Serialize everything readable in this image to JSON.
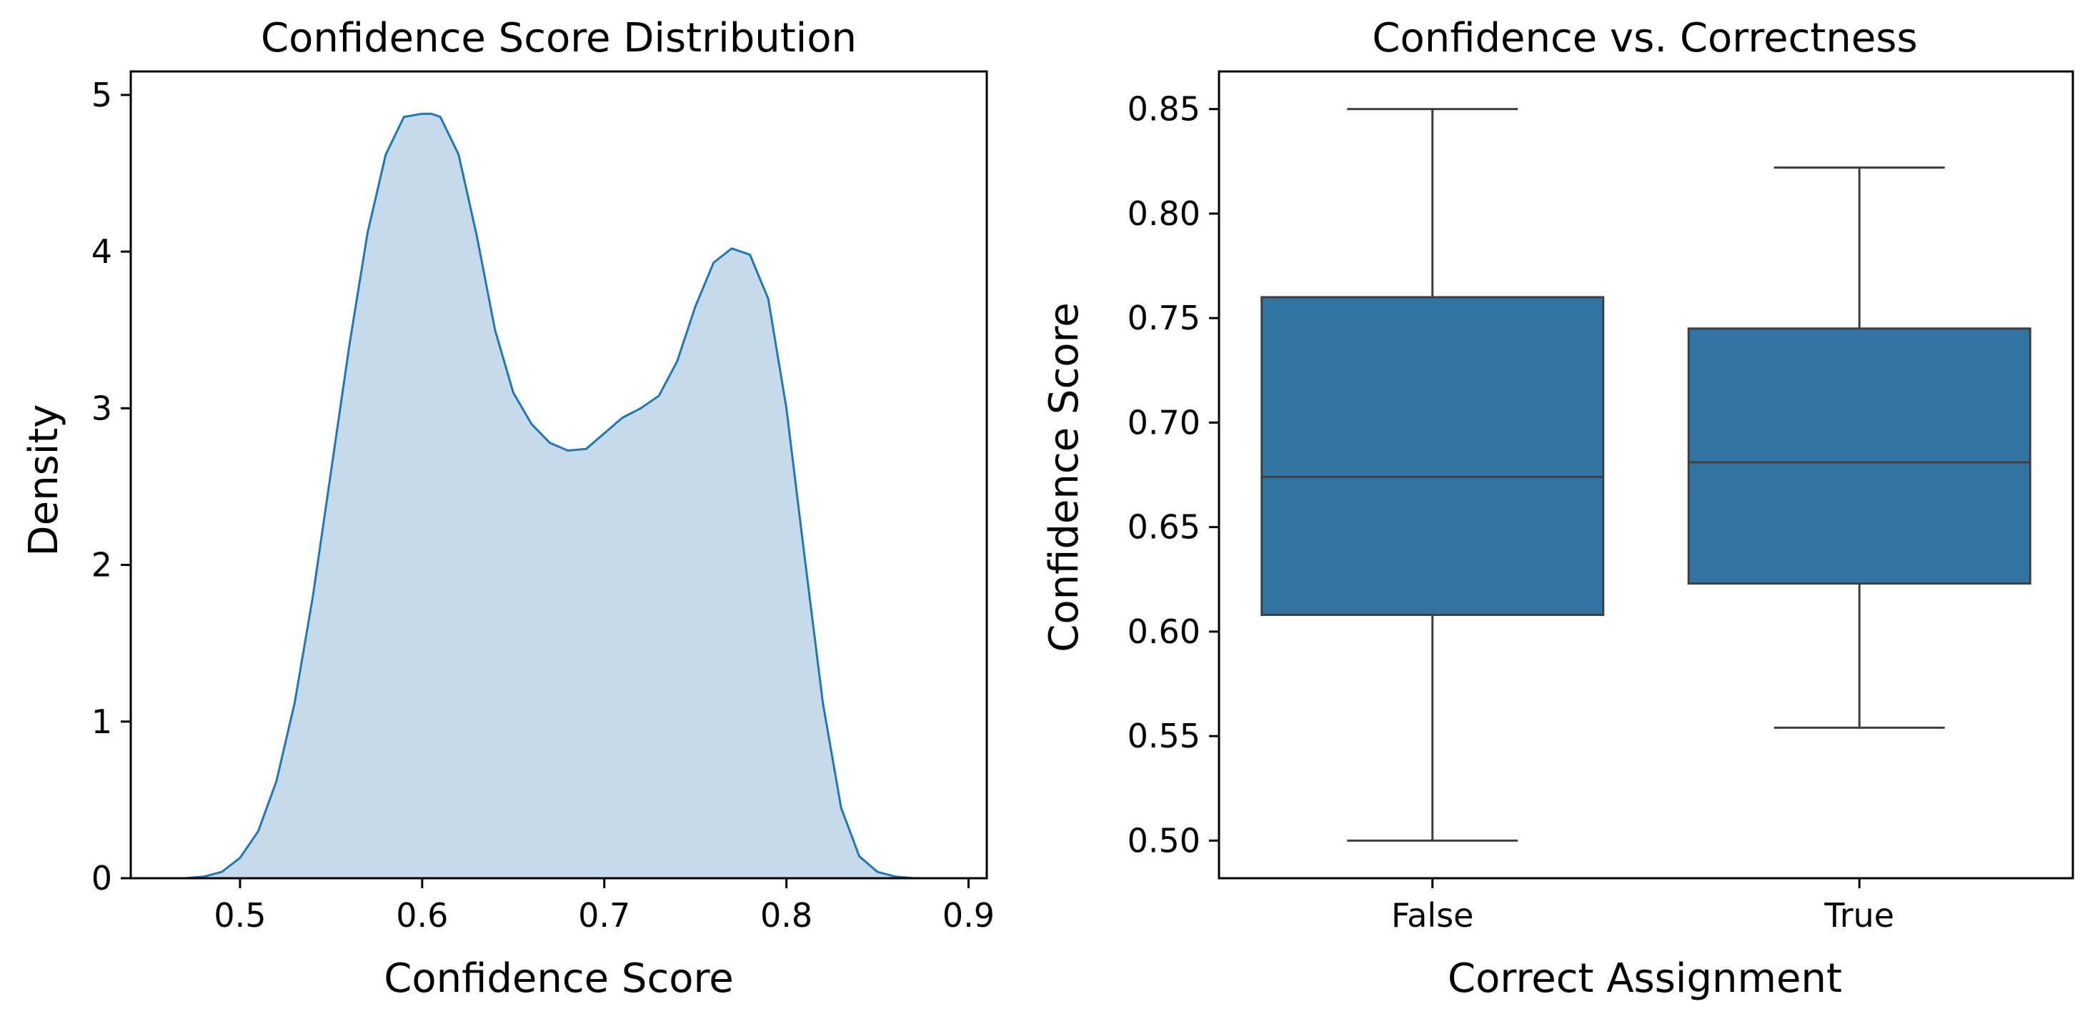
{
  "colors": {
    "kde_line": "#1f77b4",
    "kde_fill": "#c5dbec",
    "box_fill": "#3274a1",
    "box_edge": "#3f3f3f",
    "axes": "#000000",
    "background": "#ffffff"
  },
  "chart_data": [
    {
      "type": "area",
      "title": "Confidence Score Distribution",
      "xlabel": "Confidence Score",
      "ylabel": "Density",
      "xlim": [
        0.44,
        0.91
      ],
      "ylim": [
        0,
        5.15
      ],
      "xticks": [
        0.5,
        0.6,
        0.7,
        0.8,
        0.9
      ],
      "xtick_labels": [
        "0.5",
        "0.6",
        "0.7",
        "0.8",
        "0.9"
      ],
      "yticks": [
        0,
        1,
        2,
        3,
        4,
        5
      ],
      "ytick_labels": [
        "0",
        "1",
        "2",
        "3",
        "4",
        "5"
      ],
      "grid": false,
      "series": [
        {
          "x": [
            0.47,
            0.48,
            0.49,
            0.5,
            0.51,
            0.52,
            0.53,
            0.54,
            0.55,
            0.56,
            0.57,
            0.58,
            0.59,
            0.6,
            0.605,
            0.61,
            0.62,
            0.63,
            0.64,
            0.65,
            0.66,
            0.67,
            0.68,
            0.69,
            0.7,
            0.71,
            0.72,
            0.73,
            0.74,
            0.75,
            0.76,
            0.77,
            0.78,
            0.79,
            0.8,
            0.81,
            0.82,
            0.83,
            0.84,
            0.85,
            0.86,
            0.87,
            0.88
          ],
          "y": [
            0.0,
            0.01,
            0.04,
            0.13,
            0.3,
            0.62,
            1.12,
            1.8,
            2.6,
            3.4,
            4.12,
            4.62,
            4.86,
            4.88,
            4.88,
            4.86,
            4.62,
            4.1,
            3.5,
            3.1,
            2.9,
            2.78,
            2.73,
            2.74,
            2.84,
            2.94,
            3.0,
            3.08,
            3.3,
            3.65,
            3.93,
            4.02,
            3.98,
            3.7,
            3.0,
            2.05,
            1.12,
            0.45,
            0.14,
            0.04,
            0.01,
            0.0,
            0.0
          ]
        }
      ]
    },
    {
      "type": "box",
      "title": "Confidence vs. Correctness",
      "xlabel": "Correct Assignment",
      "ylabel": "Confidence Score",
      "categories": [
        "False",
        "True"
      ],
      "ylim": [
        0.482,
        0.868
      ],
      "yticks": [
        0.5,
        0.55,
        0.6,
        0.65,
        0.7,
        0.75,
        0.8,
        0.85
      ],
      "ytick_labels": [
        "0.50",
        "0.55",
        "0.60",
        "0.65",
        "0.70",
        "0.75",
        "0.80",
        "0.85"
      ],
      "grid": false,
      "boxes": [
        {
          "whisker_low": 0.5,
          "q1": 0.608,
          "median": 0.674,
          "q3": 0.76,
          "whisker_high": 0.85
        },
        {
          "whisker_low": 0.554,
          "q1": 0.623,
          "median": 0.681,
          "q3": 0.745,
          "whisker_high": 0.822
        }
      ]
    }
  ]
}
